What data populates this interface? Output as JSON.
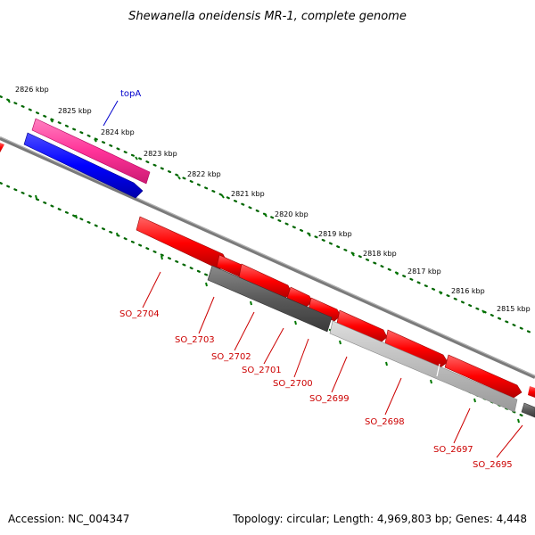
{
  "title": "Shewanella oneidensis MR-1, complete genome",
  "footer": {
    "accession": "Accession: NC_004347",
    "summary": "Topology: circular; Length: 4,969,803 bp; Genes: 4,448"
  },
  "ticks": [
    "2826 kbp",
    "2825 kbp",
    "2824 kbp",
    "2823 kbp",
    "2822 kbp",
    "2821 kbp",
    "2820 kbp",
    "2819 kbp",
    "2818 kbp",
    "2817 kbp",
    "2816 kbp",
    "2815 kbp"
  ],
  "genes": {
    "topA": "topA",
    "so2704": "SO_2704",
    "so2703": "SO_2703",
    "so2702": "SO_2702",
    "so2701": "SO_2701",
    "so2700": "SO_2700",
    "so2699": "SO_2699",
    "so2698": "SO_2698",
    "so2697": "SO_2697",
    "so2695": "SO_2695"
  },
  "colors": {
    "forward_gene": "#ff0000",
    "topA_highlight": "#ff3399",
    "topA_arrow": "#0000ff",
    "operon_dark": "#555555",
    "operon_light": "#bbbbbb",
    "backbone": "#777777",
    "tick_dots": "#006600",
    "label_red": "#cc0000",
    "label_blue": "#0000cc"
  },
  "icons": {
    "gene": "arrow-shape"
  }
}
